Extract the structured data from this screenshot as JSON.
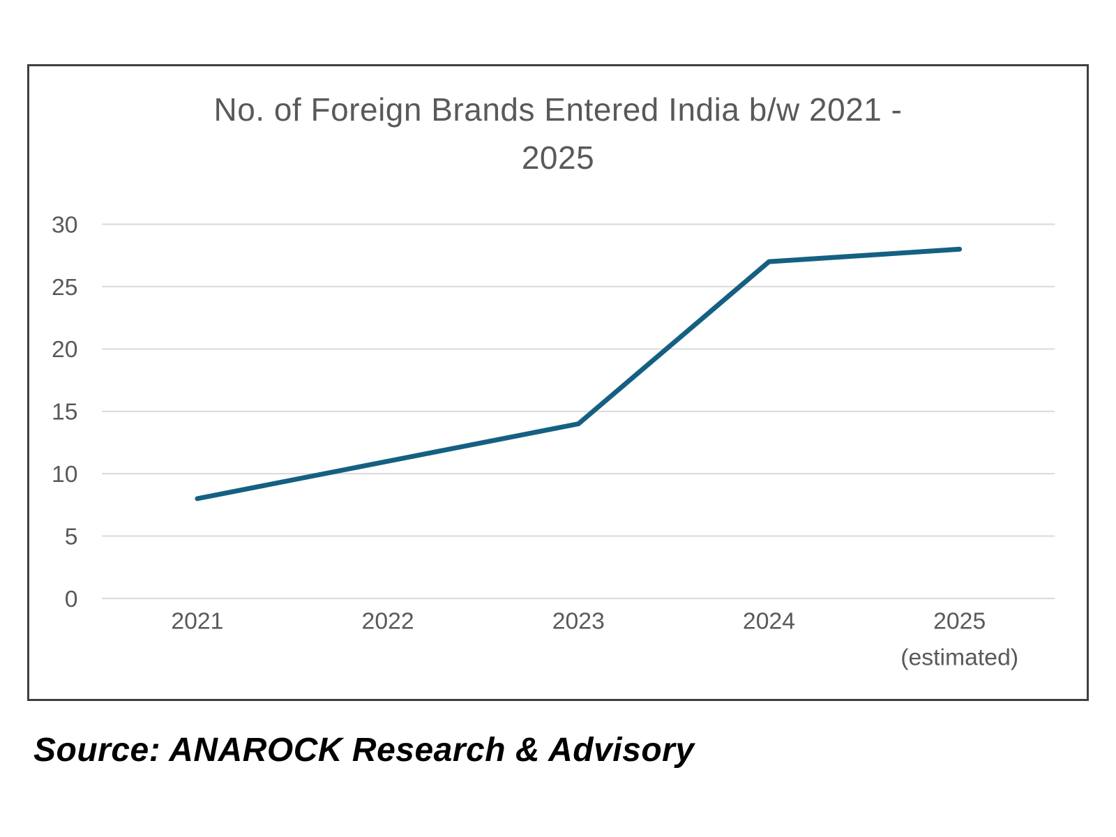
{
  "chart": {
    "title_lines": [
      "No. of Foreign Brands Entered India b/w 2021 -",
      "2025"
    ]
  },
  "chart_data": {
    "type": "line",
    "title": "No. of Foreign Brands Entered India b/w 2021 - 2025",
    "categories": [
      "2021",
      "2022",
      "2023",
      "2024",
      "2025"
    ],
    "category_sublabels": [
      "",
      "",
      "",
      "",
      "(estimated)"
    ],
    "values": [
      8,
      11,
      14,
      27,
      28
    ],
    "yticks": [
      0,
      5,
      10,
      15,
      20,
      25,
      30
    ],
    "ylim": [
      0,
      30
    ],
    "xlabel": "",
    "ylabel": "",
    "grid": "horizontal",
    "legend": "none",
    "markers": "none"
  },
  "source": {
    "text": "Source: ANAROCK Research & Advisory"
  },
  "colors": {
    "line": "#156082",
    "gridline": "#D9D9D9",
    "axis_text": "#595959",
    "title_text": "#595959",
    "frame_border": "#3F3F3F",
    "background": "#FFFFFF"
  }
}
